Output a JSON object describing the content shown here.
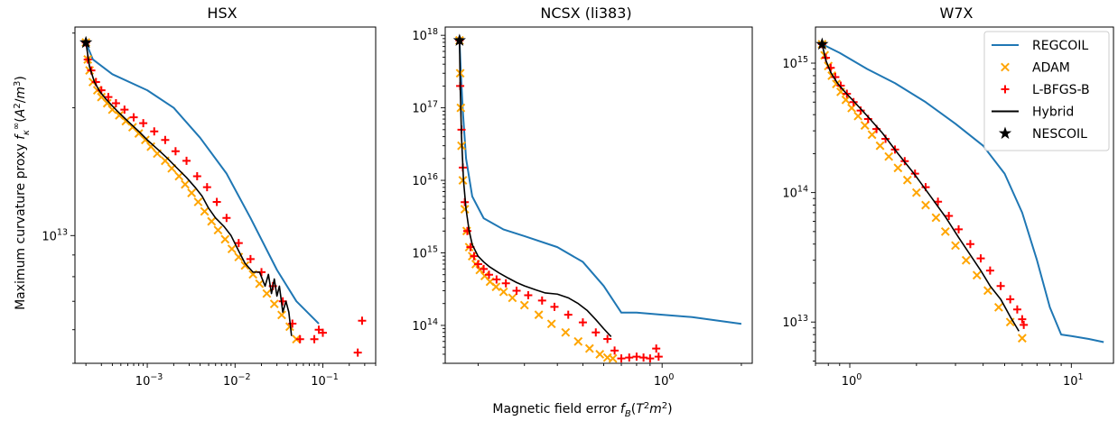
{
  "figure": {
    "ylabel": "Maximum curvature proxy fκ∞(A²/m³)",
    "xlabel": "Magnetic field error f_B(T²m²)"
  },
  "legend": {
    "items": [
      {
        "label": "REGCOIL",
        "kind": "line",
        "color": "#1f77b4"
      },
      {
        "label": "ADAM",
        "kind": "x",
        "color": "#ffa500"
      },
      {
        "label": "L-BFGS-B",
        "kind": "plus",
        "color": "#ff0000"
      },
      {
        "label": "Hybrid",
        "kind": "line",
        "color": "#000000"
      },
      {
        "label": "NESCOIL",
        "kind": "star",
        "color": "#000000"
      }
    ],
    "placement": "top-right of W7X panel"
  },
  "colors": {
    "regcoil": "#1f77b4",
    "adam": "#ffa500",
    "lbfgs": "#ff0000",
    "hybrid": "#000000",
    "nescoil": "#000000"
  },
  "chart_data": [
    {
      "type": "scatter",
      "title": "HSX",
      "xscale": "log",
      "yscale": "log",
      "xlim": [
        0.00015,
        0.4
      ],
      "ylim": [
        5000000000000.0,
        31000000000000.0
      ],
      "xticks": [
        {
          "value": 0.001,
          "base": "10",
          "exp": "−3"
        },
        {
          "value": 0.01,
          "base": "10",
          "exp": "−2"
        },
        {
          "value": 0.1,
          "base": "10",
          "exp": "−1"
        }
      ],
      "yticks": [
        {
          "value": 10000000000000.0,
          "base": "10",
          "exp": "13"
        }
      ],
      "series": [
        {
          "name": "REGCOIL",
          "kind": "line",
          "x": [
            0.0002,
            0.00024,
            0.0004,
            0.001,
            0.002,
            0.004,
            0.008,
            0.015,
            0.03,
            0.05,
            0.09
          ],
          "y": [
            28500000000000.0,
            26000000000000.0,
            24000000000000.0,
            22000000000000.0,
            20000000000000.0,
            17000000000000.0,
            14000000000000.0,
            11000000000000.0,
            8300000000000.0,
            7000000000000.0,
            6200000000000.0
          ]
        },
        {
          "name": "ADAM",
          "kind": "x",
          "x": [
            0.0002,
            0.00021,
            0.00022,
            0.00024,
            0.00027,
            0.0003,
            0.00035,
            0.0004,
            0.00048,
            0.00057,
            0.00068,
            0.0008,
            0.00095,
            0.0011,
            0.0013,
            0.0016,
            0.0019,
            0.0023,
            0.0027,
            0.0032,
            0.0038,
            0.0045,
            0.0054,
            0.0064,
            0.0077,
            0.0092,
            0.011,
            0.013,
            0.016,
            0.019,
            0.023,
            0.028,
            0.034,
            0.042,
            0.05
          ],
          "y": [
            28500000000000.0,
            26000000000000.0,
            24500000000000.0,
            23000000000000.0,
            22000000000000.0,
            21200000000000.0,
            20500000000000.0,
            19800000000000.0,
            19200000000000.0,
            18600000000000.0,
            18000000000000.0,
            17400000000000.0,
            16800000000000.0,
            16200000000000.0,
            15600000000000.0,
            15000000000000.0,
            14400000000000.0,
            13800000000000.0,
            13200000000000.0,
            12600000000000.0,
            12000000000000.0,
            11400000000000.0,
            10800000000000.0,
            10300000000000.0,
            9800000000000.0,
            9300000000000.0,
            8900000000000.0,
            8500000000000.0,
            8100000000000.0,
            7700000000000.0,
            7300000000000.0,
            6900000000000.0,
            6500000000000.0,
            6100000000000.0,
            5700000000000.0
          ]
        },
        {
          "name": "L-BFGS-B",
          "kind": "plus",
          "x": [
            0.0002,
            0.00021,
            0.00023,
            0.00026,
            0.0003,
            0.00036,
            0.00044,
            0.00055,
            0.0007,
            0.0009,
            0.0012,
            0.0016,
            0.0021,
            0.0028,
            0.0037,
            0.0048,
            0.0062,
            0.008,
            0.011,
            0.015,
            0.02,
            0.027,
            0.035,
            0.045,
            0.055,
            0.08,
            0.09,
            0.1,
            0.25,
            0.28
          ],
          "y": [
            28500000000000.0,
            26000000000000.0,
            24500000000000.0,
            23000000000000.0,
            22000000000000.0,
            21200000000000.0,
            20500000000000.0,
            19800000000000.0,
            19000000000000.0,
            18400000000000.0,
            17600000000000.0,
            16800000000000.0,
            15800000000000.0,
            15000000000000.0,
            13800000000000.0,
            13000000000000.0,
            12000000000000.0,
            11000000000000.0,
            9600000000000.0,
            8800000000000.0,
            8200000000000.0,
            7600000000000.0,
            7000000000000.0,
            6200000000000.0,
            5700000000000.0,
            5700000000000.0,
            6000000000000.0,
            5900000000000.0,
            5300000000000.0,
            6300000000000.0
          ]
        },
        {
          "name": "Hybrid",
          "kind": "line",
          "x": [
            0.0002,
            0.00022,
            0.00025,
            0.00029,
            0.00035,
            0.00045,
            0.0006,
            0.0008,
            0.001,
            0.0013,
            0.0017,
            0.0022,
            0.0028,
            0.0035,
            0.0042,
            0.005,
            0.006,
            0.0075,
            0.009,
            0.011,
            0.013,
            0.016,
            0.019,
            0.022,
            0.024,
            0.026,
            0.028,
            0.03,
            0.032,
            0.035,
            0.038,
            0.041,
            0.044
          ],
          "y": [
            28500000000000.0,
            25000000000000.0,
            23000000000000.0,
            21800000000000.0,
            20800000000000.0,
            19700000000000.0,
            18600000000000.0,
            17600000000000.0,
            16800000000000.0,
            16000000000000.0,
            15200000000000.0,
            14400000000000.0,
            13700000000000.0,
            13000000000000.0,
            12400000000000.0,
            11600000000000.0,
            11000000000000.0,
            10500000000000.0,
            10000000000000.0,
            9200000000000.0,
            8600000000000.0,
            8200000000000.0,
            8200000000000.0,
            7600000000000.0,
            8100000000000.0,
            7300000000000.0,
            7900000000000.0,
            7200000000000.0,
            7600000000000.0,
            6600000000000.0,
            7000000000000.0,
            6600000000000.0,
            5800000000000.0
          ]
        },
        {
          "name": "NESCOIL",
          "kind": "star",
          "x": [
            0.0002
          ],
          "y": [
            28500000000000.0
          ]
        }
      ]
    },
    {
      "type": "scatter",
      "title": "NCSX (li383)",
      "xscale": "log",
      "yscale": "log",
      "xlim": [
        0.15,
        2.2
      ],
      "ylim": [
        30000000000000.0,
        1.3e+18
      ],
      "xticks": [
        {
          "value": 1,
          "base": "10",
          "exp": "0"
        }
      ],
      "yticks": [
        {
          "value": 100000000000000.0,
          "base": "10",
          "exp": "14"
        },
        {
          "value": 1000000000000000.0,
          "base": "10",
          "exp": "15"
        },
        {
          "value": 1e+16,
          "base": "10",
          "exp": "16"
        },
        {
          "value": 1e+17,
          "base": "10",
          "exp": "17"
        },
        {
          "value": 1e+18,
          "base": "10",
          "exp": "18"
        }
      ],
      "series": [
        {
          "name": "REGCOIL",
          "kind": "line",
          "x": [
            0.17,
            0.172,
            0.175,
            0.18,
            0.19,
            0.21,
            0.25,
            0.3,
            0.4,
            0.5,
            0.6,
            0.7,
            0.8,
            1.0,
            1.3,
            2.0
          ],
          "y": [
            8.5e+17,
            3e+17,
            9e+16,
            2e+16,
            6000000000000000.0,
            3000000000000000.0,
            2100000000000000.0,
            1700000000000000.0,
            1200000000000000.0,
            750000000000000.0,
            350000000000000.0,
            150000000000000.0,
            150000000000000.0,
            140000000000000.0,
            130000000000000.0,
            105000000000000.0
          ]
        },
        {
          "name": "ADAM",
          "kind": "x",
          "x": [
            0.17,
            0.171,
            0.172,
            0.173,
            0.175,
            0.178,
            0.181,
            0.185,
            0.19,
            0.196,
            0.203,
            0.212,
            0.222,
            0.234,
            0.25,
            0.27,
            0.3,
            0.34,
            0.38,
            0.43,
            0.48,
            0.53,
            0.58,
            0.62,
            0.65
          ],
          "y": [
            8.5e+17,
            3e+17,
            1e+17,
            3e+16,
            1e+16,
            4000000000000000.0,
            2000000000000000.0,
            1200000000000000.0,
            900000000000000.0,
            700000000000000.0,
            580000000000000.0,
            480000000000000.0,
            400000000000000.0,
            340000000000000.0,
            290000000000000.0,
            240000000000000.0,
            190000000000000.0,
            140000000000000.0,
            105000000000000.0,
            80000000000000.0,
            60000000000000.0,
            48000000000000.0,
            40000000000000.0,
            36000000000000.0,
            35000000000000.0
          ]
        },
        {
          "name": "L-BFGS-B",
          "kind": "plus",
          "x": [
            0.17,
            0.171,
            0.173,
            0.175,
            0.178,
            0.182,
            0.187,
            0.193,
            0.2,
            0.21,
            0.22,
            0.235,
            0.255,
            0.28,
            0.31,
            0.35,
            0.39,
            0.44,
            0.5,
            0.56,
            0.62,
            0.66,
            0.7,
            0.75,
            0.8,
            0.85,
            0.9,
            0.95,
            0.97
          ],
          "y": [
            8.5e+17,
            2e+17,
            5e+16,
            1.5e+16,
            5000000000000000.0,
            2000000000000000.0,
            1200000000000000.0,
            900000000000000.0,
            700000000000000.0,
            600000000000000.0,
            500000000000000.0,
            430000000000000.0,
            380000000000000.0,
            300000000000000.0,
            260000000000000.0,
            220000000000000.0,
            180000000000000.0,
            140000000000000.0,
            110000000000000.0,
            80000000000000.0,
            65000000000000.0,
            45000000000000.0,
            35000000000000.0,
            36000000000000.0,
            37000000000000.0,
            36000000000000.0,
            35000000000000.0,
            48000000000000.0,
            37000000000000.0
          ]
        },
        {
          "name": "Hybrid",
          "kind": "line",
          "x": [
            0.17,
            0.171,
            0.173,
            0.176,
            0.18,
            0.185,
            0.19,
            0.2,
            0.21,
            0.22,
            0.24,
            0.26,
            0.28,
            0.3,
            0.33,
            0.36,
            0.4,
            0.44,
            0.48,
            0.52,
            0.56,
            0.6,
            0.64
          ],
          "y": [
            8.5e+17,
            2e+17,
            4e+16,
            1e+16,
            4000000000000000.0,
            2000000000000000.0,
            1300000000000000.0,
            900000000000000.0,
            750000000000000.0,
            650000000000000.0,
            530000000000000.0,
            450000000000000.0,
            390000000000000.0,
            350000000000000.0,
            310000000000000.0,
            280000000000000.0,
            270000000000000.0,
            240000000000000.0,
            200000000000000.0,
            160000000000000.0,
            120000000000000.0,
            90000000000000.0,
            70000000000000.0
          ]
        },
        {
          "name": "NESCOIL",
          "kind": "star",
          "x": [
            0.17
          ],
          "y": [
            8.5e+17
          ]
        }
      ]
    },
    {
      "type": "scatter",
      "title": "W7X",
      "xscale": "log",
      "yscale": "log",
      "xlim": [
        0.7,
        15.5
      ],
      "ylim": [
        4800000000000.0,
        1900000000000000.0
      ],
      "xticks": [
        {
          "value": 1,
          "base": "10",
          "exp": "0"
        },
        {
          "value": 10,
          "base": "10",
          "exp": "1"
        }
      ],
      "yticks": [
        {
          "value": 10000000000000.0,
          "base": "10",
          "exp": "13"
        },
        {
          "value": 100000000000000.0,
          "base": "10",
          "exp": "14"
        },
        {
          "value": 1000000000000000.0,
          "base": "10",
          "exp": "15"
        }
      ],
      "series": [
        {
          "name": "REGCOIL",
          "kind": "line",
          "x": [
            0.75,
            0.9,
            1.2,
            1.6,
            2.2,
            3.0,
            4.0,
            5.0,
            6.0,
            7.0,
            8.0,
            9.0,
            10.0,
            12.0,
            14.0
          ],
          "y": [
            1400000000000000.0,
            1200000000000000.0,
            900000000000000.0,
            700000000000000.0,
            500000000000000.0,
            340000000000000.0,
            230000000000000.0,
            140000000000000.0,
            70000000000000.0,
            30000000000000.0,
            13000000000000.0,
            8000000000000.0,
            7800000000000.0,
            7400000000000.0,
            7000000000000.0
          ]
        },
        {
          "name": "ADAM",
          "kind": "x",
          "x": [
            0.75,
            0.77,
            0.8,
            0.83,
            0.87,
            0.91,
            0.96,
            1.02,
            1.09,
            1.17,
            1.26,
            1.37,
            1.5,
            1.65,
            1.82,
            2.0,
            2.2,
            2.45,
            2.7,
            3.0,
            3.35,
            3.75,
            4.2,
            4.7,
            5.3,
            6.0
          ],
          "y": [
            1400000000000000.0,
            1150000000000000.0,
            950000000000000.0,
            800000000000000.0,
            690000000000000.0,
            600000000000000.0,
            520000000000000.0,
            450000000000000.0,
            390000000000000.0,
            330000000000000.0,
            280000000000000.0,
            230000000000000.0,
            190000000000000.0,
            155000000000000.0,
            125000000000000.0,
            100000000000000.0,
            80000000000000.0,
            64000000000000.0,
            50000000000000.0,
            39000000000000.0,
            30000000000000.0,
            23000000000000.0,
            17500000000000.0,
            13000000000000.0,
            10000000000000.0,
            7500000000000.0
          ]
        },
        {
          "name": "L-BFGS-B",
          "kind": "plus",
          "x": [
            0.75,
            0.78,
            0.82,
            0.86,
            0.91,
            0.97,
            1.04,
            1.12,
            1.21,
            1.32,
            1.45,
            1.6,
            1.77,
            1.97,
            2.2,
            2.5,
            2.8,
            3.1,
            3.5,
            3.9,
            4.3,
            4.8,
            5.3,
            5.7,
            6.0,
            6.1
          ],
          "y": [
            1400000000000000.0,
            1100000000000000.0,
            920000000000000.0,
            780000000000000.0,
            670000000000000.0,
            580000000000000.0,
            500000000000000.0,
            430000000000000.0,
            370000000000000.0,
            310000000000000.0,
            260000000000000.0,
            215000000000000.0,
            175000000000000.0,
            140000000000000.0,
            110000000000000.0,
            85000000000000.0,
            66000000000000.0,
            52000000000000.0,
            40000000000000.0,
            31000000000000.0,
            25000000000000.0,
            19000000000000.0,
            15000000000000.0,
            12500000000000.0,
            10500000000000.0,
            9500000000000.0
          ]
        },
        {
          "name": "Hybrid",
          "kind": "line",
          "x": [
            0.75,
            0.78,
            0.82,
            0.88,
            0.95,
            1.05,
            1.2,
            1.4,
            1.65,
            1.95,
            2.3,
            2.7,
            3.1,
            3.5,
            3.9,
            4.3,
            4.8,
            5.3,
            5.8
          ],
          "y": [
            1400000000000000.0,
            1050000000000000.0,
            850000000000000.0,
            700000000000000.0,
            600000000000000.0,
            500000000000000.0,
            390000000000000.0,
            290000000000000.0,
            200000000000000.0,
            140000000000000.0,
            95000000000000.0,
            65000000000000.0,
            45000000000000.0,
            33000000000000.0,
            25000000000000.0,
            19000000000000.0,
            15000000000000.0,
            11000000000000.0,
            8500000000000.0
          ]
        },
        {
          "name": "NESCOIL",
          "kind": "star",
          "x": [
            0.75
          ],
          "y": [
            1400000000000000.0
          ]
        }
      ]
    }
  ]
}
